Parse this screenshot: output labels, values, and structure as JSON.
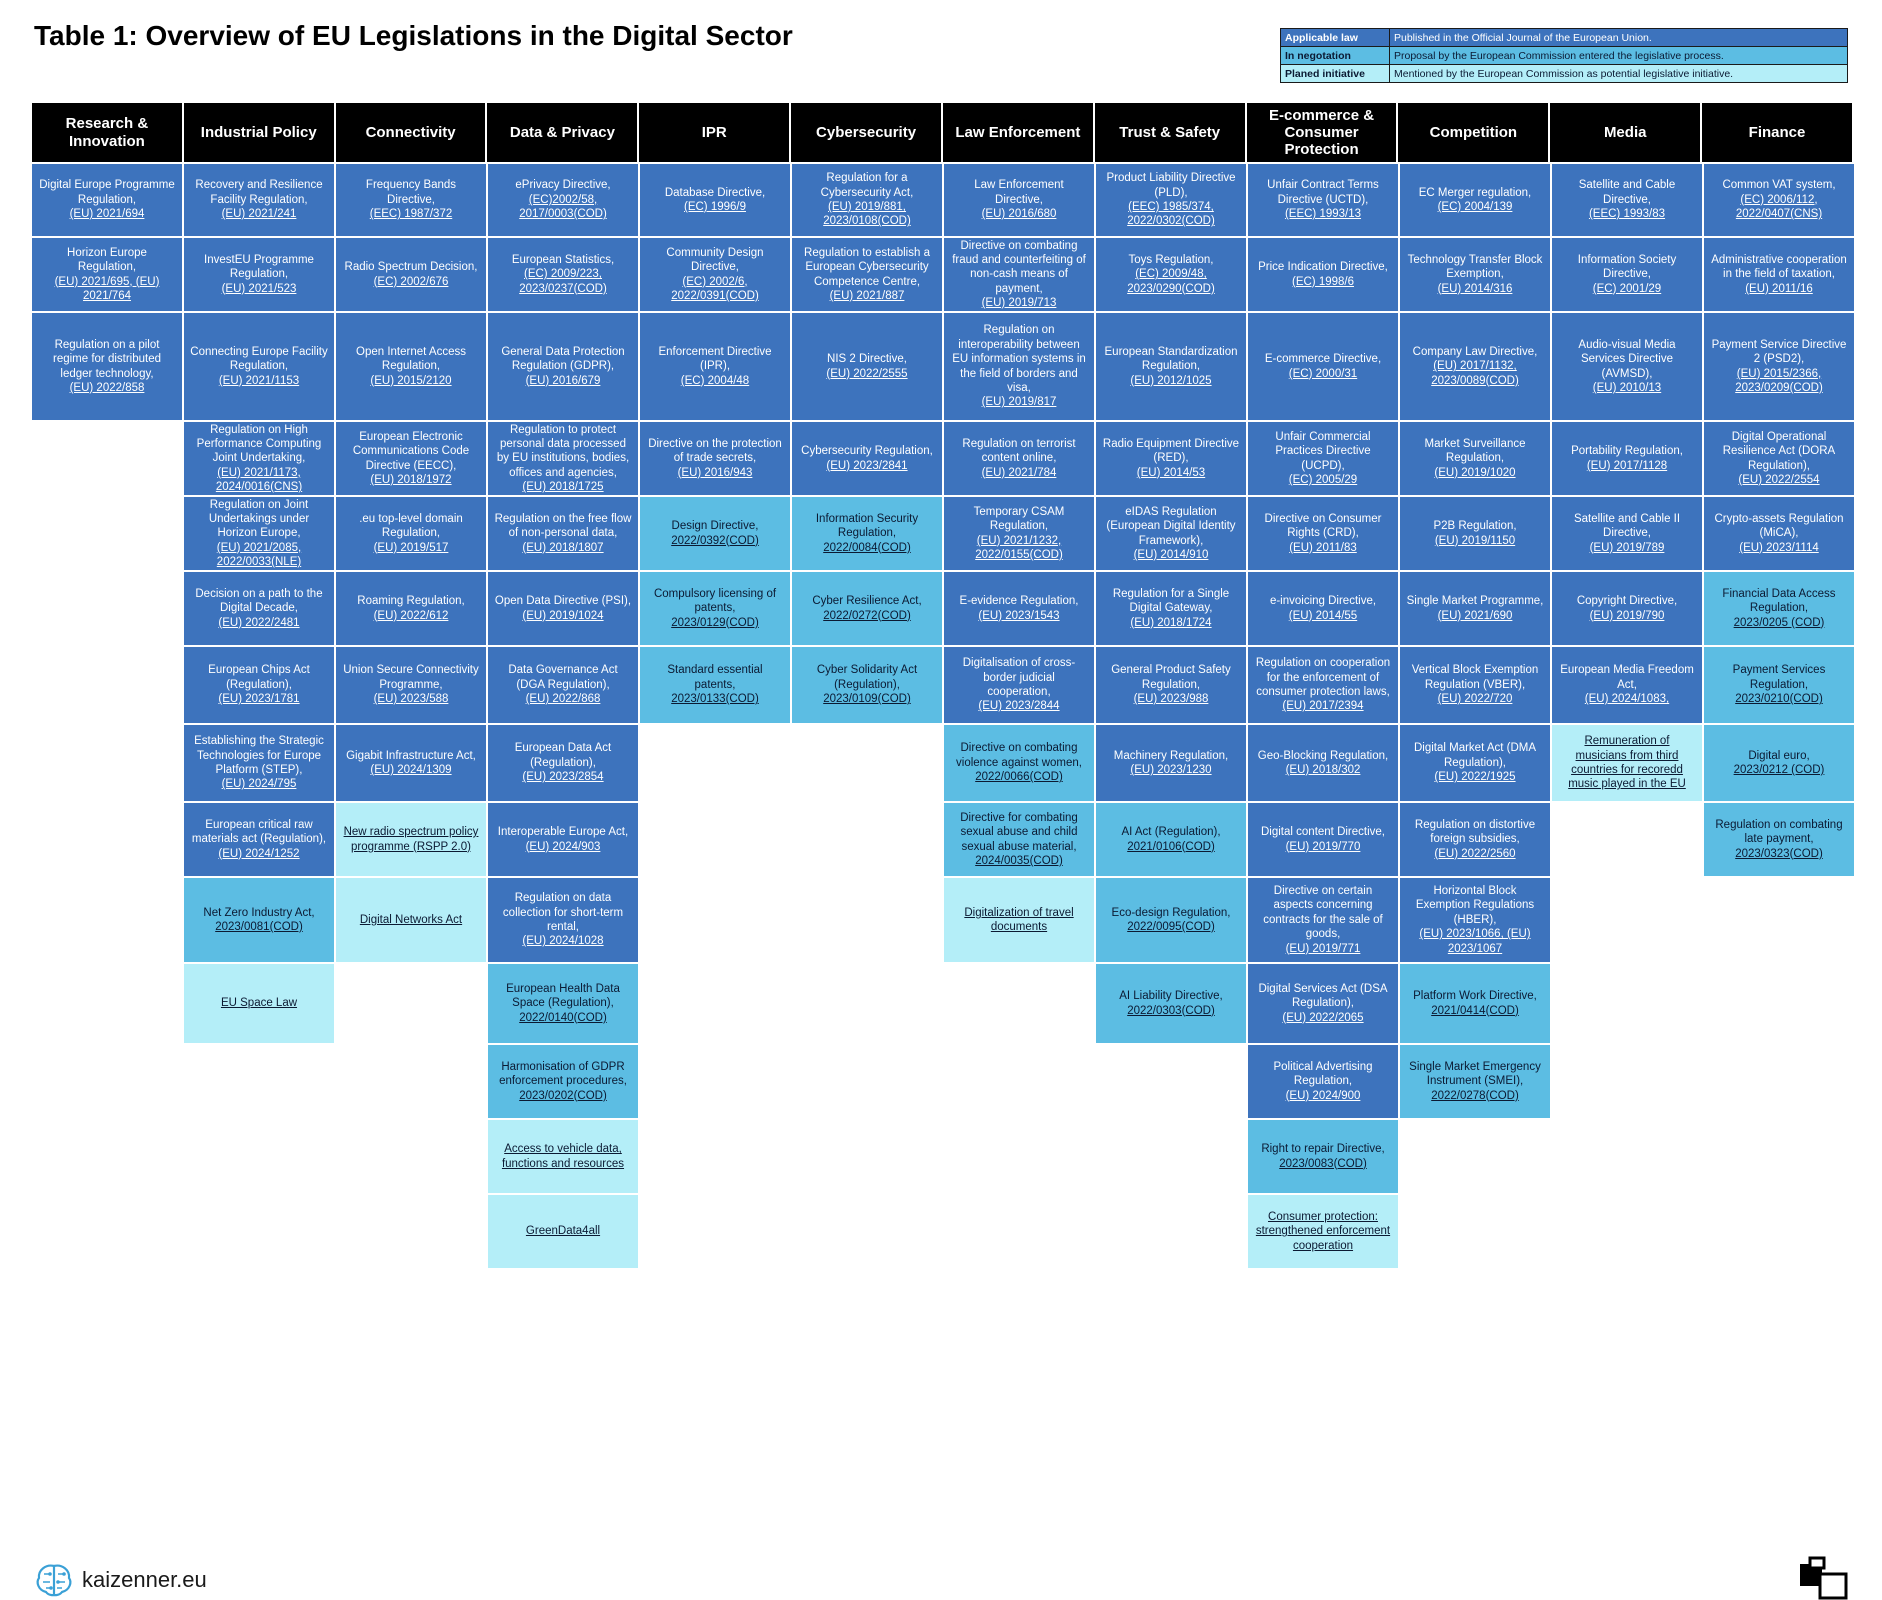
{
  "title": "Table 1: Overview of EU Legislations in the Digital Sector",
  "legend": [
    {
      "key": "Applicable law",
      "desc": "Published in the Official Journal of the European Union.",
      "color": "#3d73bd"
    },
    {
      "key": "In negotation",
      "desc": "Proposal by the European Commission entered the legislative process.",
      "color": "#5cbde3"
    },
    {
      "key": "Planed initiative",
      "desc": "Mentioned by the European Commission as potential legislative initiative.",
      "color": "#b4eef8"
    }
  ],
  "columns": [
    {
      "header": "Research & Innovation",
      "cells": [
        {
          "status": "law",
          "name": "Digital Europe Programme Regulation,",
          "ref": "(EU) 2021/694"
        },
        {
          "status": "law",
          "name": "Horizon Europe Regulation,",
          "ref": "(EU) 2021/695, (EU) 2021/764"
        },
        {
          "status": "law",
          "name": "Regulation on a pilot regime for distributed ledger technology,",
          "ref": "(EU) 2022/858"
        }
      ]
    },
    {
      "header": "Industrial Policy",
      "cells": [
        {
          "status": "law",
          "name": "Recovery and Resilience Facility Regulation,",
          "ref": "(EU) 2021/241"
        },
        {
          "status": "law",
          "name": "InvestEU Programme Regulation,",
          "ref": "(EU) 2021/523"
        },
        {
          "status": "law",
          "name": "Connecting Europe Facility Regulation,",
          "ref": "(EU) 2021/1153"
        },
        {
          "status": "law",
          "name": "Regulation on High Performance Computing Joint Undertaking,",
          "ref": "(EU) 2021/1173, 2024/0016(CNS)"
        },
        {
          "status": "law",
          "name": "Regulation on Joint Undertakings under Horizon Europe,",
          "ref": "(EU) 2021/2085, 2022/0033(NLE)"
        },
        {
          "status": "law",
          "name": "Decision on a path to the Digital Decade,",
          "ref": "(EU) 2022/2481"
        },
        {
          "status": "law",
          "name": "European Chips Act (Regulation),",
          "ref": "(EU) 2023/1781"
        },
        {
          "status": "law",
          "name": "Establishing the Strategic Technologies for Europe Platform (STEP),",
          "ref": "(EU) 2024/795"
        },
        {
          "status": "law",
          "name": "European critical raw materials act (Regulation),",
          "ref": "(EU) 2024/1252"
        },
        {
          "status": "neg",
          "name": "Net Zero Industry Act,",
          "ref": "2023/0081(COD)"
        },
        {
          "status": "plan",
          "name": "",
          "ref": "EU Space Law"
        }
      ]
    },
    {
      "header": "Connectivity",
      "cells": [
        {
          "status": "law",
          "name": "Frequency Bands Directive,",
          "ref": "(EEC) 1987/372"
        },
        {
          "status": "law",
          "name": "Radio Spectrum Decision,",
          "ref": "(EC) 2002/676"
        },
        {
          "status": "law",
          "name": "Open Internet Access Regulation,",
          "ref": "(EU) 2015/2120"
        },
        {
          "status": "law",
          "name": "European Electronic Communications Code Directive (EECC),",
          "ref": "(EU) 2018/1972"
        },
        {
          "status": "law",
          "name": ".eu top-level domain Regulation,",
          "ref": "(EU) 2019/517"
        },
        {
          "status": "law",
          "name": "Roaming Regulation,",
          "ref": "(EU) 2022/612"
        },
        {
          "status": "law",
          "name": "Union Secure Connectivity Programme,",
          "ref": "(EU) 2023/588"
        },
        {
          "status": "law",
          "name": "Gigabit Infrastructure Act,",
          "ref": "(EU) 2024/1309"
        },
        {
          "status": "plan",
          "name": "",
          "ref": "New radio spectrum policy programme (RSPP 2.0)"
        },
        {
          "status": "plan",
          "name": "",
          "ref": "Digital Networks Act"
        }
      ]
    },
    {
      "header": "Data & Privacy",
      "cells": [
        {
          "status": "law",
          "name": "ePrivacy Directive,",
          "ref": "(EC)2002/58, 2017/0003(COD)"
        },
        {
          "status": "law",
          "name": "European Statistics,",
          "ref": "(EC) 2009/223, 2023/0237(COD)"
        },
        {
          "status": "law",
          "name": "General Data Protection Regulation (GDPR),",
          "ref": "(EU) 2016/679"
        },
        {
          "status": "law",
          "name": "Regulation to protect personal data processed by EU institutions, bodies, offices and agencies,",
          "ref": "(EU) 2018/1725"
        },
        {
          "status": "law",
          "name": "Regulation on the free flow of non-personal data,",
          "ref": "(EU) 2018/1807"
        },
        {
          "status": "law",
          "name": "Open Data Directive (PSI),",
          "ref": "(EU) 2019/1024"
        },
        {
          "status": "law",
          "name": "Data Governance Act (DGA Regulation),",
          "ref": "(EU) 2022/868"
        },
        {
          "status": "law",
          "name": "European Data Act (Regulation),",
          "ref": "(EU) 2023/2854"
        },
        {
          "status": "law",
          "name": "Interoperable Europe Act,",
          "ref": "(EU) 2024/903"
        },
        {
          "status": "law",
          "name": "Regulation on data collection for short-term rental,",
          "ref": "(EU) 2024/1028"
        },
        {
          "status": "neg",
          "name": "European Health Data Space (Regulation),",
          "ref": "2022/0140(COD)"
        },
        {
          "status": "neg",
          "name": "Harmonisation of GDPR enforcement procedures,",
          "ref": "2023/0202(COD)"
        },
        {
          "status": "plan",
          "name": "",
          "ref": "Access to vehicle data, functions and resources"
        },
        {
          "status": "plan",
          "name": "",
          "ref": "GreenData4all"
        }
      ]
    },
    {
      "header": "IPR",
      "cells": [
        {
          "status": "law",
          "name": "Database Directive,",
          "ref": "(EC) 1996/9"
        },
        {
          "status": "law",
          "name": "Community Design Directive,",
          "ref": "(EC) 2002/6, 2022/0391(COD)"
        },
        {
          "status": "law",
          "name": "Enforcement Directive (IPR),",
          "ref": "(EC) 2004/48"
        },
        {
          "status": "law",
          "name": "Directive on the protection of trade secrets,",
          "ref": "(EU) 2016/943"
        },
        {
          "status": "neg",
          "name": "Design Directive,",
          "ref": "2022/0392(COD)"
        },
        {
          "status": "neg",
          "name": "Compulsory licensing of patents,",
          "ref": "2023/0129(COD)"
        },
        {
          "status": "neg",
          "name": "Standard essential patents,",
          "ref": "2023/0133(COD)"
        }
      ]
    },
    {
      "header": "Cybersecurity",
      "cells": [
        {
          "status": "law",
          "name": "Regulation for a Cybersecurity Act,",
          "ref": "(EU) 2019/881, 2023/0108(COD)"
        },
        {
          "status": "law",
          "name": "Regulation to establish a European Cybersecurity Competence Centre,",
          "ref": "(EU) 2021/887"
        },
        {
          "status": "law",
          "name": "NIS 2 Directive,",
          "ref": "(EU) 2022/2555"
        },
        {
          "status": "law",
          "name": "Cybersecurity Regulation,",
          "ref": "(EU) 2023/2841"
        },
        {
          "status": "neg",
          "name": "Information Security Regulation,",
          "ref": "2022/0084(COD)"
        },
        {
          "status": "neg",
          "name": "Cyber Resilience Act,",
          "ref": "2022/0272(COD)"
        },
        {
          "status": "neg",
          "name": "Cyber Solidarity Act (Regulation),",
          "ref": "2023/0109(COD)"
        }
      ]
    },
    {
      "header": "Law Enforcement",
      "cells": [
        {
          "status": "law",
          "name": "Law Enforcement Directive,",
          "ref": "(EU) 2016/680"
        },
        {
          "status": "law",
          "name": "Directive on combating fraud and counterfeiting of non-cash means of payment,",
          "ref": "(EU) 2019/713"
        },
        {
          "status": "law",
          "name": "Regulation on interoperability between EU information systems in the field of borders and visa,",
          "ref": "(EU) 2019/817"
        },
        {
          "status": "law",
          "name": "Regulation on terrorist content online,",
          "ref": "(EU) 2021/784"
        },
        {
          "status": "law",
          "name": "Temporary CSAM Regulation,",
          "ref": "(EU) 2021/1232, 2022/0155(COD)"
        },
        {
          "status": "law",
          "name": "E-evidence Regulation,",
          "ref": "(EU) 2023/1543"
        },
        {
          "status": "law",
          "name": "Digitalisation of cross-border judicial cooperation,",
          "ref": "(EU) 2023/2844"
        },
        {
          "status": "neg",
          "name": "Directive on combating violence against women,",
          "ref": "2022/0066(COD)"
        },
        {
          "status": "neg",
          "name": "Directive for combating sexual abuse and child sexual abuse material,",
          "ref": "2024/0035(COD)"
        },
        {
          "status": "plan",
          "name": "",
          "ref": "Digitalization of travel documents"
        }
      ]
    },
    {
      "header": "Trust & Safety",
      "cells": [
        {
          "status": "law",
          "name": "Product Liability Directive (PLD),",
          "ref": "(EEC) 1985/374, 2022/0302(COD)"
        },
        {
          "status": "law",
          "name": "Toys Regulation,",
          "ref": "(EC) 2009/48, 2023/0290(COD)"
        },
        {
          "status": "law",
          "name": "European Standardization Regulation,",
          "ref": "(EU) 2012/1025"
        },
        {
          "status": "law",
          "name": "Radio Equipment Directive (RED),",
          "ref": "(EU) 2014/53"
        },
        {
          "status": "law",
          "name": "eIDAS Regulation (European Digital Identity Framework),",
          "ref": "(EU) 2014/910"
        },
        {
          "status": "law",
          "name": "Regulation for a Single Digital Gateway,",
          "ref": "(EU) 2018/1724"
        },
        {
          "status": "law",
          "name": "General Product Safety Regulation,",
          "ref": "(EU) 2023/988"
        },
        {
          "status": "law",
          "name": "Machinery Regulation,",
          "ref": "(EU) 2023/1230"
        },
        {
          "status": "neg",
          "name": "AI Act (Regulation),",
          "ref": "2021/0106(COD)"
        },
        {
          "status": "neg",
          "name": "Eco-design Regulation,",
          "ref": "2022/0095(COD)"
        },
        {
          "status": "neg",
          "name": "AI Liability Directive,",
          "ref": "2022/0303(COD)"
        }
      ]
    },
    {
      "header": "E-commerce & Consumer Protection",
      "cells": [
        {
          "status": "law",
          "name": "Unfair Contract Terms Directive (UCTD),",
          "ref": "(EEC) 1993/13"
        },
        {
          "status": "law",
          "name": "Price Indication Directive,",
          "ref": "(EC) 1998/6"
        },
        {
          "status": "law",
          "name": "E-commerce Directive,",
          "ref": "(EC) 2000/31"
        },
        {
          "status": "law",
          "name": "Unfair Commercial Practices Directive (UCPD),",
          "ref": "(EC) 2005/29"
        },
        {
          "status": "law",
          "name": "Directive on Consumer Rights (CRD),",
          "ref": "(EU) 2011/83"
        },
        {
          "status": "law",
          "name": "e-invoicing Directive,",
          "ref": "(EU) 2014/55"
        },
        {
          "status": "law",
          "name": "Regulation on cooperation for the enforcement of consumer protection laws,",
          "ref": "(EU) 2017/2394"
        },
        {
          "status": "law",
          "name": "Geo-Blocking Regulation,",
          "ref": "(EU) 2018/302"
        },
        {
          "status": "law",
          "name": "Digital content Directive,",
          "ref": "(EU) 2019/770"
        },
        {
          "status": "law",
          "name": "Directive on certain aspects concerning contracts for the sale of goods,",
          "ref": "(EU) 2019/771"
        },
        {
          "status": "law",
          "name": "Digital Services Act (DSA Regulation),",
          "ref": "(EU) 2022/2065"
        },
        {
          "status": "law",
          "name": "Political Advertising Regulation,",
          "ref": "(EU) 2024/900"
        },
        {
          "status": "neg",
          "name": "Right to repair Directive,",
          "ref": "2023/0083(COD)"
        },
        {
          "status": "plan",
          "name": "",
          "ref": "Consumer protection: strengthened enforcement cooperation"
        }
      ]
    },
    {
      "header": "Competition",
      "cells": [
        {
          "status": "law",
          "name": "EC Merger regulation,",
          "ref": "(EC) 2004/139"
        },
        {
          "status": "law",
          "name": "Technology Transfer Block Exemption,",
          "ref": "(EU) 2014/316"
        },
        {
          "status": "law",
          "name": "Company Law Directive,",
          "ref": "(EU) 2017/1132, 2023/0089(COD)"
        },
        {
          "status": "law",
          "name": "Market Surveillance Regulation,",
          "ref": "(EU) 2019/1020"
        },
        {
          "status": "law",
          "name": "P2B Regulation,",
          "ref": "(EU) 2019/1150"
        },
        {
          "status": "law",
          "name": "Single Market Programme,",
          "ref": "(EU) 2021/690"
        },
        {
          "status": "law",
          "name": "Vertical Block Exemption Regulation (VBER),",
          "ref": "(EU) 2022/720"
        },
        {
          "status": "law",
          "name": "Digital Market Act (DMA Regulation),",
          "ref": "(EU) 2022/1925"
        },
        {
          "status": "law",
          "name": "Regulation on distortive foreign subsidies,",
          "ref": "(EU) 2022/2560"
        },
        {
          "status": "law",
          "name": "Horizontal Block Exemption Regulations (HBER),",
          "ref": "(EU) 2023/1066, (EU) 2023/1067"
        },
        {
          "status": "neg",
          "name": "Platform Work Directive,",
          "ref": "2021/0414(COD)"
        },
        {
          "status": "neg",
          "name": "Single Market Emergency Instrument (SMEI),",
          "ref": "2022/0278(COD)"
        }
      ]
    },
    {
      "header": "Media",
      "cells": [
        {
          "status": "law",
          "name": "Satellite and Cable Directive,",
          "ref": "(EEC) 1993/83"
        },
        {
          "status": "law",
          "name": "Information Society Directive,",
          "ref": "(EC) 2001/29"
        },
        {
          "status": "law",
          "name": "Audio-visual Media Services Directive (AVMSD),",
          "ref": "(EU) 2010/13"
        },
        {
          "status": "law",
          "name": "Portability Regulation,",
          "ref": "(EU) 2017/1128"
        },
        {
          "status": "law",
          "name": "Satellite and Cable II Directive,",
          "ref": "(EU) 2019/789"
        },
        {
          "status": "law",
          "name": "Copyright Directive,",
          "ref": "(EU) 2019/790"
        },
        {
          "status": "law",
          "name": "European Media Freedom Act,",
          "ref": "(EU) 2024/1083,"
        },
        {
          "status": "plan",
          "name": "",
          "ref": "Remuneration of musicians from third countries for recoredd music played in the EU"
        }
      ]
    },
    {
      "header": "Finance",
      "cells": [
        {
          "status": "law",
          "name": "Common VAT system,",
          "ref": "(EC) 2006/112, 2022/0407(CNS)"
        },
        {
          "status": "law",
          "name": "Administrative cooperation in the field of taxation,",
          "ref": "(EU) 2011/16"
        },
        {
          "status": "law",
          "name": "Payment Service Directive 2 (PSD2),",
          "ref": "(EU) 2015/2366, 2023/0209(COD)"
        },
        {
          "status": "law",
          "name": "Digital Operational Resilience Act (DORA Regulation),",
          "ref": "(EU) 2022/2554"
        },
        {
          "status": "law",
          "name": "Crypto-assets Regulation (MiCA),",
          "ref": "(EU) 2023/1114"
        },
        {
          "status": "neg",
          "name": "Financial Data Access Regulation,",
          "ref": "2023/0205 (COD)"
        },
        {
          "status": "neg",
          "name": "Payment Services Regulation,",
          "ref": "2023/0210(COD)"
        },
        {
          "status": "neg",
          "name": "Digital euro,",
          "ref": "2023/0212 (COD)"
        },
        {
          "status": "neg",
          "name": "Regulation on combating late payment,",
          "ref": "2023/0323(COD)"
        }
      ]
    }
  ],
  "footer": {
    "logo_text": "kaizenner.eu",
    "logo_icon": "brain-circuit-icon",
    "corner_icon": "stacked-squares-icon"
  }
}
